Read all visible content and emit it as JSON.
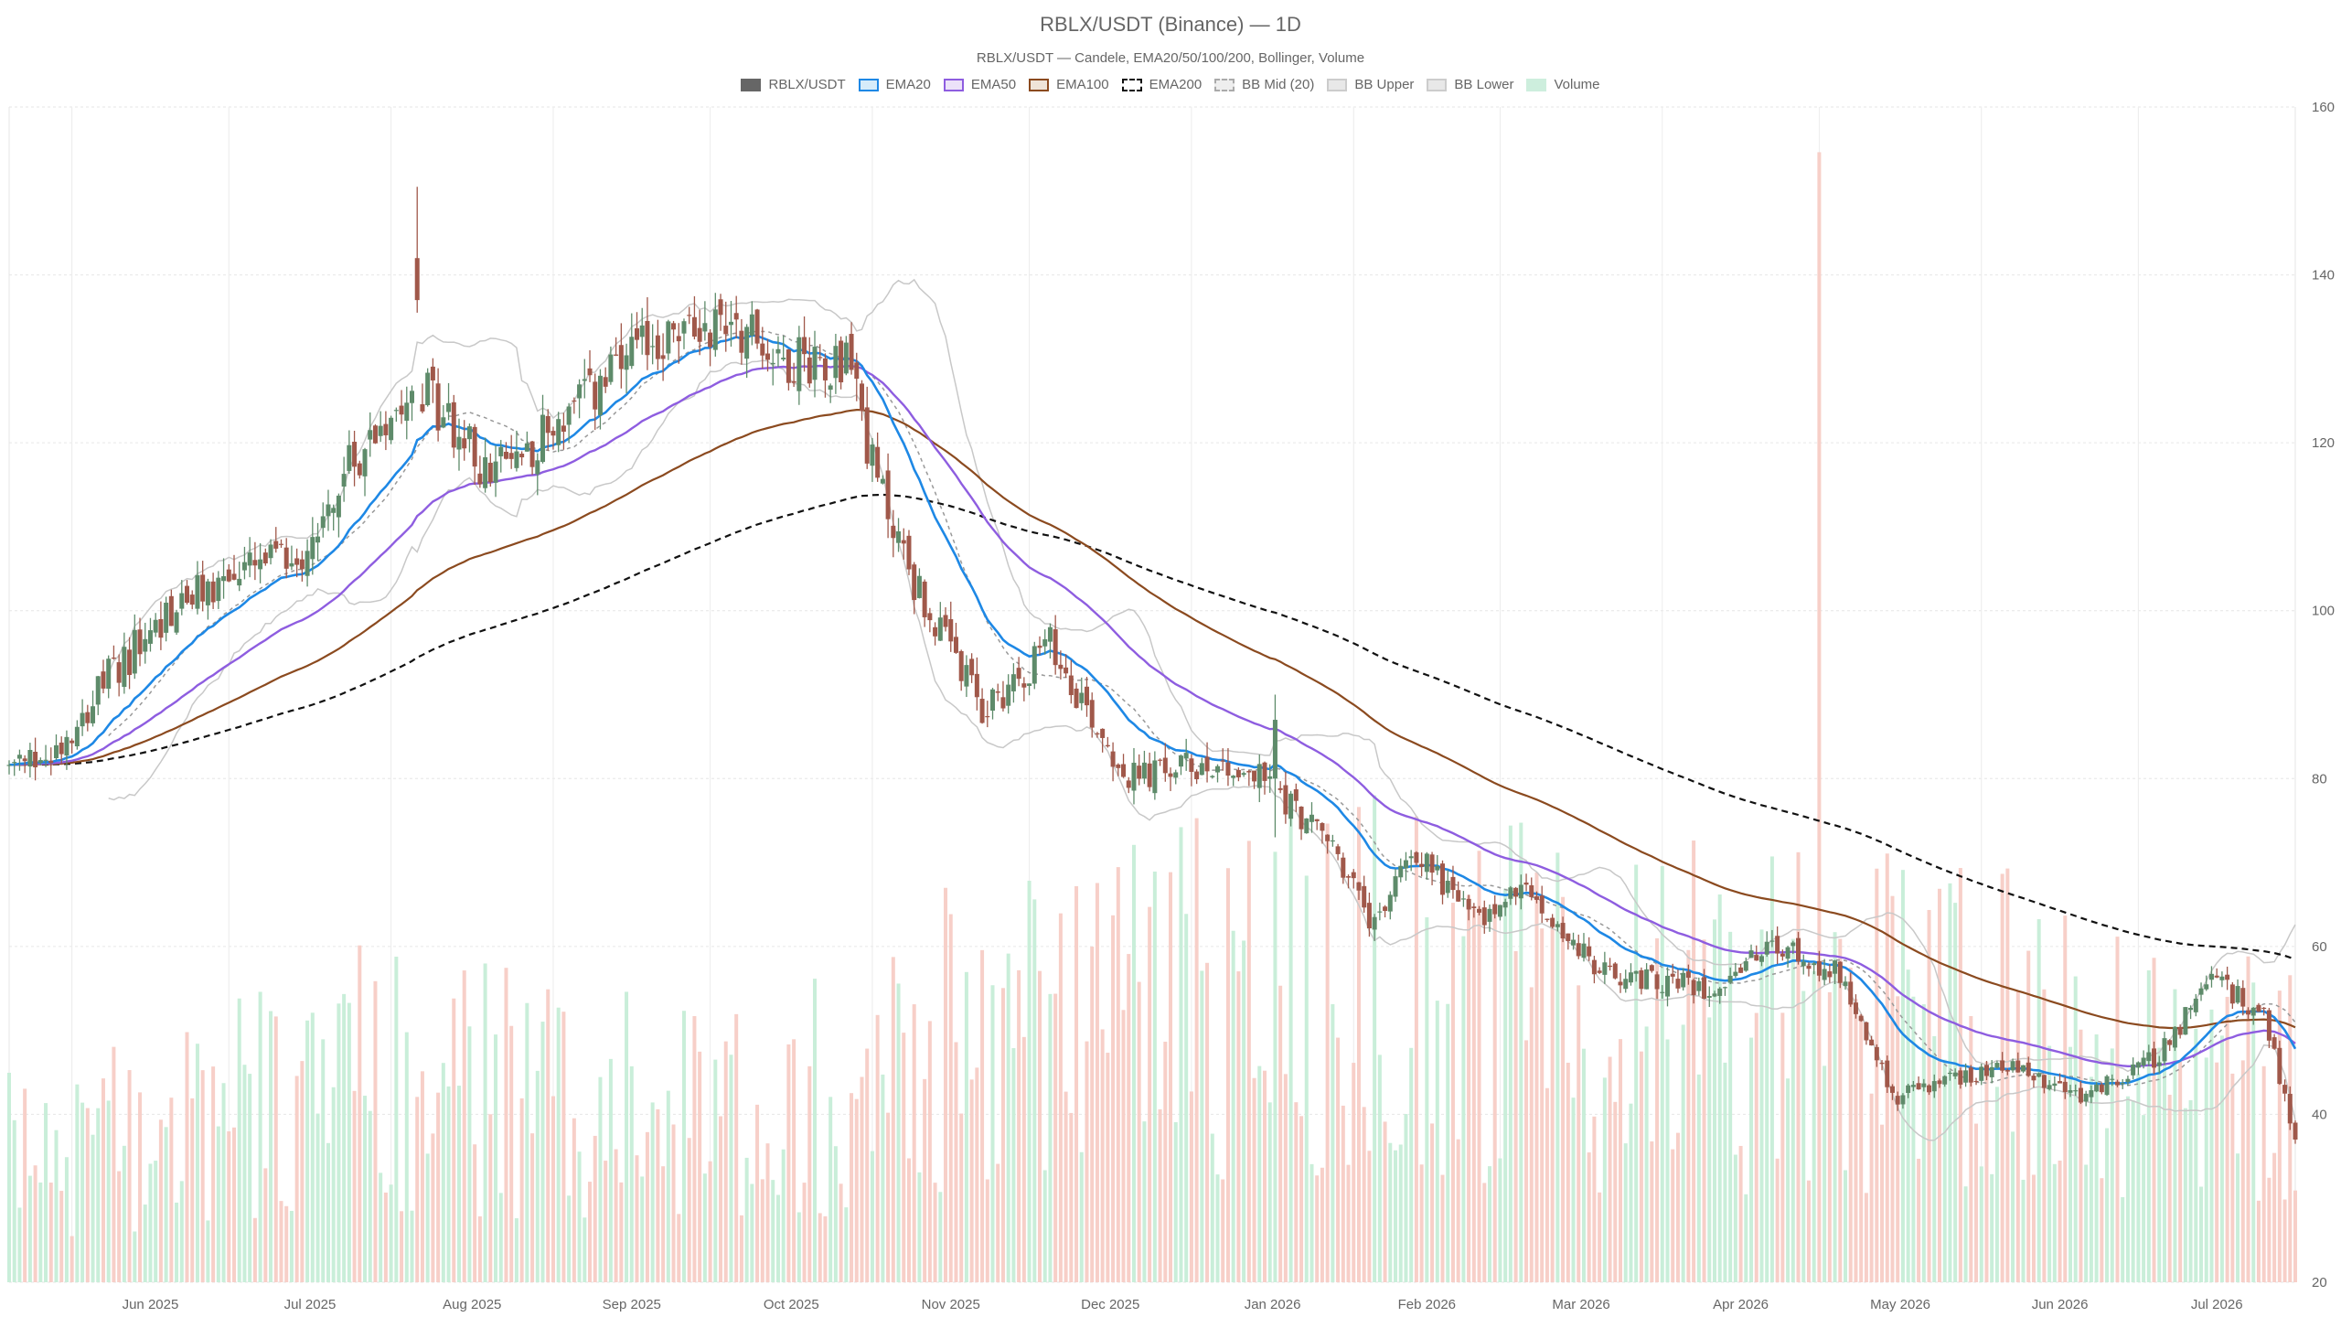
{
  "title": "RBLX/USDT (Binance) — 1D",
  "subtitle": "RBLX/USDT — Candele, EMA20/50/100/200, Bollinger, Volume",
  "legend": [
    {
      "label": "RBLX/USDT",
      "fill": "#666666",
      "stroke": "#666666",
      "dash": false
    },
    {
      "label": "EMA20",
      "fill": "#d6ecfa",
      "stroke": "#1e88e5",
      "dash": false
    },
    {
      "label": "EMA50",
      "fill": "#ece2f9",
      "stroke": "#8e5de0",
      "dash": false
    },
    {
      "label": "EMA100",
      "fill": "#efe4d8",
      "stroke": "#8b4a1f",
      "dash": false
    },
    {
      "label": "EMA200",
      "fill": "#ffffff",
      "stroke": "#111111",
      "dash": true
    },
    {
      "label": "BB Mid (20)",
      "fill": "#eeeeee",
      "stroke": "#aaaaaa",
      "dash": true
    },
    {
      "label": "BB Upper",
      "fill": "#e8e8e8",
      "stroke": "#cccccc",
      "dash": false
    },
    {
      "label": "BB Lower",
      "fill": "#e8e8e8",
      "stroke": "#cccccc",
      "dash": false
    },
    {
      "label": "Volume",
      "fill": "#cdeedd",
      "stroke": "#cdeedd",
      "dash": false
    }
  ],
  "chart_data": {
    "type": "candlestick",
    "x_tick_labels": [
      "Jun 2025",
      "Jul 2025",
      "Aug 2025",
      "Sep 2025",
      "Oct 2025",
      "Nov 2025",
      "Dec 2025",
      "Jan 2026",
      "Feb 2026",
      "Mar 2026",
      "Apr 2026",
      "May 2026",
      "Jun 2026",
      "Jul 2026"
    ],
    "y_ticks": [
      20,
      40,
      60,
      80,
      100,
      120,
      140,
      160
    ],
    "ylim": [
      20,
      160
    ],
    "x_start": "2025-05-20",
    "x_end": "2026-07-31",
    "grid": true,
    "legend_position": "top",
    "colors": {
      "up": "#5e8b6a",
      "down": "#a0584a",
      "ema20": "#1e88e5",
      "ema50": "#8e5de0",
      "ema100": "#8b4a1f",
      "ema200": "#111111",
      "bb": "#c8c8c8",
      "bb_mid": "#999999",
      "vol_up": "#c9eed9",
      "vol_down": "#f7cfc8"
    },
    "close_anchors": [
      [
        "2025-05-20",
        81
      ],
      [
        "2025-05-28",
        83
      ],
      [
        "2025-06-08",
        92
      ],
      [
        "2025-06-20",
        100
      ],
      [
        "2025-07-01",
        104
      ],
      [
        "2025-07-15",
        107
      ],
      [
        "2025-07-25",
        118
      ],
      [
        "2025-08-05",
        128
      ],
      [
        "2025-08-20",
        116
      ],
      [
        "2025-09-05",
        124
      ],
      [
        "2025-09-20",
        132
      ],
      [
        "2025-10-05",
        135
      ],
      [
        "2025-10-15",
        130
      ],
      [
        "2025-10-28",
        130
      ],
      [
        "2025-11-01",
        117
      ],
      [
        "2025-11-10",
        102
      ],
      [
        "2025-11-22",
        88
      ],
      [
        "2025-12-05",
        96
      ],
      [
        "2025-12-20",
        80
      ],
      [
        "2026-01-05",
        82
      ],
      [
        "2026-01-15",
        80
      ],
      [
        "2026-01-28",
        72
      ],
      [
        "2026-02-05",
        62
      ],
      [
        "2026-02-12",
        72
      ],
      [
        "2026-02-25",
        63
      ],
      [
        "2026-03-05",
        67
      ],
      [
        "2026-03-20",
        57
      ],
      [
        "2026-04-10",
        55
      ],
      [
        "2026-04-22",
        60
      ],
      [
        "2026-05-05",
        57
      ],
      [
        "2026-05-15",
        42
      ],
      [
        "2026-06-05",
        46
      ],
      [
        "2026-06-20",
        42
      ],
      [
        "2026-07-05",
        47
      ],
      [
        "2026-07-15",
        56
      ],
      [
        "2026-07-25",
        52
      ],
      [
        "2026-07-31",
        37
      ]
    ],
    "volume_ylim": [
      0,
      1300000
    ],
    "volume_anchors": [
      [
        "2025-05-20",
        150000
      ],
      [
        "2025-08-01",
        250000
      ],
      [
        "2025-10-01",
        200000
      ],
      [
        "2025-11-01",
        260000
      ],
      [
        "2026-01-15",
        380000
      ],
      [
        "2026-03-01",
        330000
      ],
      [
        "2026-05-01",
        320000
      ],
      [
        "2026-06-15",
        290000
      ],
      [
        "2026-07-31",
        230000
      ]
    ],
    "notable_candles": [
      {
        "date": "2025-08-06",
        "open": 142,
        "high": 150.5,
        "low": 135.5,
        "close": 137
      },
      {
        "date": "2026-01-17",
        "open": 80,
        "high": 90,
        "low": 73,
        "close": 87
      }
    ],
    "notable_volumes": [
      {
        "date": "2026-05-01",
        "volume": 1250000
      }
    ]
  }
}
